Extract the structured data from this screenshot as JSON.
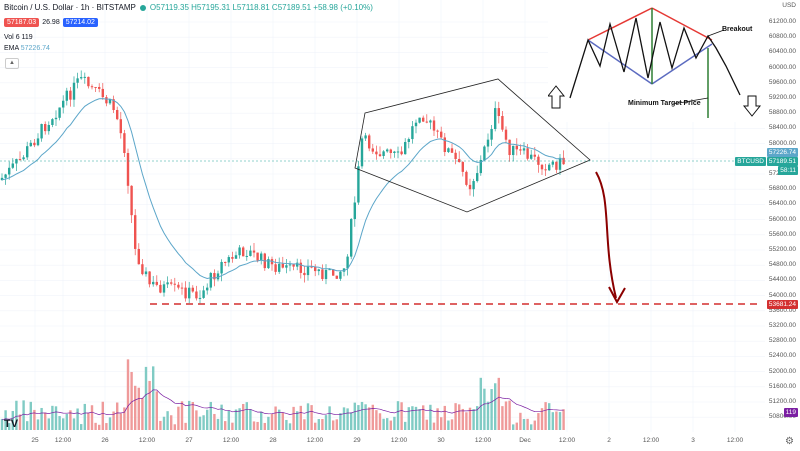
{
  "header": {
    "title": "Bitcoin / U.S. Dollar · 1h · BITSTAMP",
    "ohlc": "O57119.35 H57195.31 L57118.81 C57189.51 +58.98 (+0.10%)",
    "sell_price": "57187.03",
    "spread": "26.98",
    "buy_price": "57214.02",
    "vol_label": "Vol",
    "vol_value": "6 119",
    "ema_label": "EMA",
    "ema_value": "57226.74",
    "collapse_icon": "chevron-up"
  },
  "price_axis": {
    "currency": "USD",
    "ticks": [
      "61200.00",
      "60800.00",
      "60400.00",
      "60000.00",
      "59600.00",
      "59200.00",
      "58800.00",
      "58400.00",
      "58000.00",
      "57600.00",
      "57200.00",
      "56800.00",
      "56400.00",
      "56000.00",
      "55600.00",
      "55200.00",
      "54800.00",
      "54400.00",
      "54000.00",
      "53600.00",
      "53200.00",
      "52800.00",
      "52400.00",
      "52000.00",
      "51600.00",
      "51200.00",
      "50800.00"
    ],
    "symbol_tag": "BTCUSD",
    "ema_tag": "57226.74",
    "price_tag": "57189.51",
    "countdown_tag": "58:11",
    "target_tag": "53681.24",
    "volume_tag": "119"
  },
  "time_axis": {
    "labels": [
      "25",
      "12:00",
      "26",
      "12:00",
      "27",
      "12:00",
      "28",
      "12:00",
      "29",
      "12:00",
      "30",
      "12:00",
      "Dec",
      "12:00",
      "2",
      "12:00",
      "3",
      "12:00"
    ]
  },
  "inset": {
    "breakout_label": "Breakout",
    "min_target_label": "Minimum Target Price"
  },
  "colors": {
    "up": "#26a69a",
    "down": "#ef5350",
    "ema": "#5ca6c9",
    "annotation_red": "#d32f2f",
    "arrow_dark_red": "#8b0000"
  },
  "footer": {
    "logo": "TV",
    "gear_icon": "settings"
  }
}
